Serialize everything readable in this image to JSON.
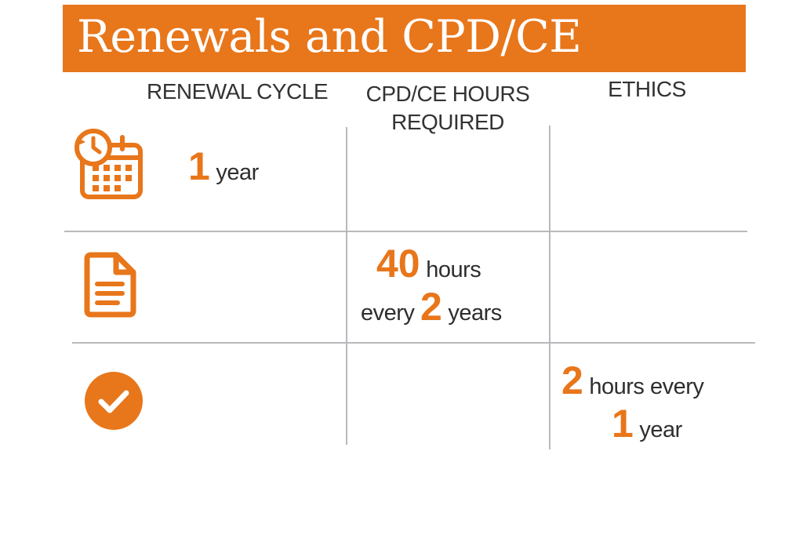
{
  "colors": {
    "accent": "#E8761A",
    "text": "#2E2E2E",
    "grid": "#B9B9BD"
  },
  "title": "Renewals and CPD/CE",
  "columns": {
    "renewal": "RENEWAL CYCLE",
    "cpd_line1": "CPD/CE HOURS",
    "cpd_line2": "REQUIRED",
    "ethics": "ETHICS"
  },
  "rows": [
    {
      "icon": "calendar-clock-icon",
      "number": "1",
      "unit": "year"
    },
    {
      "icon": "document-icon",
      "number1": "40",
      "unit1": "hours",
      "prefix2": "every",
      "number2": "2",
      "unit2": "years"
    },
    {
      "icon": "check-circle-icon",
      "number1": "2",
      "unit1": "hours every",
      "number2": "1",
      "unit2": "year"
    }
  ]
}
